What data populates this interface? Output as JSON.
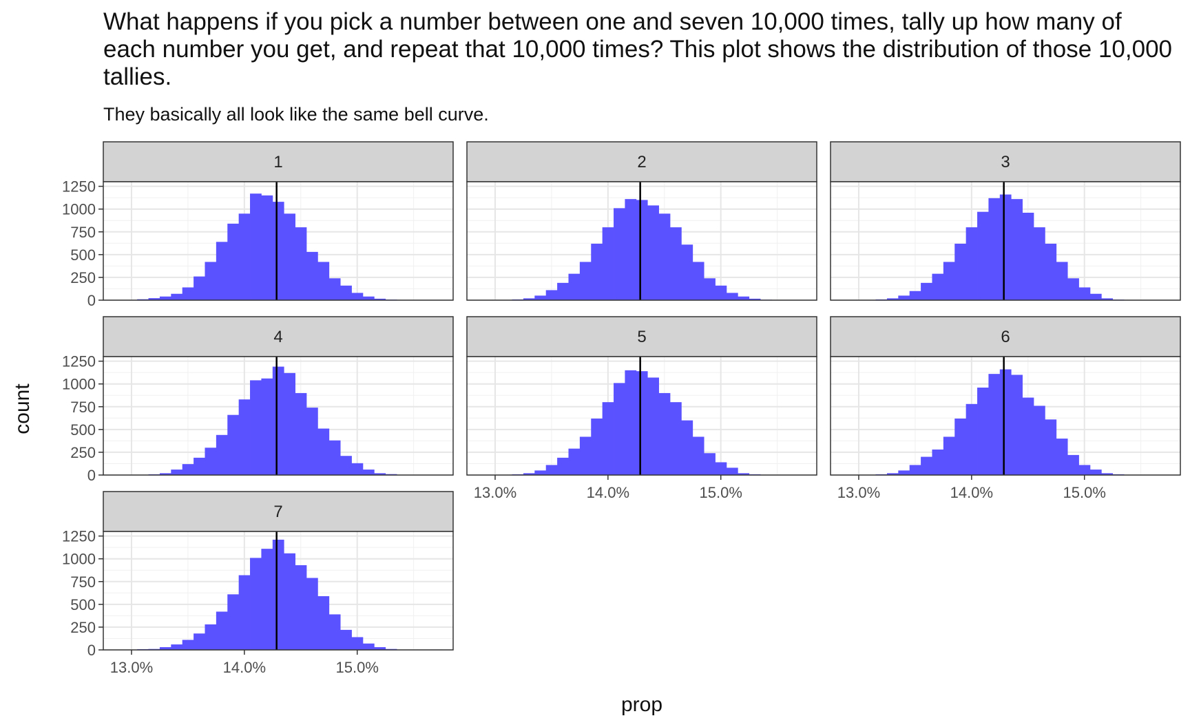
{
  "chart_data": {
    "type": "bar",
    "subtype": "faceted-histogram",
    "title": "What happens if you pick a number between one and seven 10,000 times, tally up how many of each number you get, and repeat that 10,000 times? This plot shows the distribution of those 10,000 tallies.",
    "subtitle": "They basically all look like the same bell curve.",
    "xlabel": "prop",
    "ylabel": "count",
    "xlim": [
      0.1275,
      0.1585
    ],
    "ylim": [
      0,
      1300
    ],
    "x_ticks": [
      0.13,
      0.14,
      0.15
    ],
    "x_tick_labels": [
      "13.0%",
      "14.0%",
      "15.0%"
    ],
    "y_ticks": [
      0,
      250,
      500,
      750,
      1000,
      1250
    ],
    "y_tick_labels": [
      "0",
      "250",
      "500",
      "750",
      "1000",
      "1250"
    ],
    "reference_line_x": 0.142857,
    "bar_color": "#5b52ff",
    "bin_width": 0.001,
    "bin_centers": [
      0.128,
      0.129,
      0.13,
      0.131,
      0.132,
      0.133,
      0.134,
      0.135,
      0.136,
      0.137,
      0.138,
      0.139,
      0.14,
      0.141,
      0.142,
      0.143,
      0.144,
      0.145,
      0.146,
      0.147,
      0.148,
      0.149,
      0.15,
      0.151,
      0.152,
      0.153,
      0.154,
      0.155,
      0.156,
      0.157
    ],
    "series": [
      {
        "name": "1",
        "values": [
          0,
          2,
          3,
          10,
          22,
          40,
          70,
          140,
          260,
          420,
          640,
          840,
          950,
          1170,
          1150,
          1080,
          950,
          800,
          530,
          420,
          240,
          160,
          80,
          40,
          16,
          6,
          3,
          1,
          0,
          0
        ]
      },
      {
        "name": "2",
        "values": [
          0,
          0,
          0,
          3,
          8,
          20,
          50,
          110,
          190,
          290,
          420,
          620,
          800,
          1010,
          1110,
          1100,
          1040,
          950,
          800,
          610,
          420,
          240,
          160,
          80,
          40,
          16,
          5,
          1,
          0,
          0
        ]
      },
      {
        "name": "3",
        "values": [
          0,
          0,
          0,
          3,
          8,
          20,
          50,
          100,
          190,
          290,
          420,
          620,
          800,
          970,
          1120,
          1160,
          1110,
          960,
          800,
          620,
          420,
          240,
          140,
          70,
          20,
          6,
          2,
          1,
          0,
          0
        ]
      },
      {
        "name": "4",
        "values": [
          0,
          0,
          1,
          3,
          8,
          20,
          60,
          120,
          190,
          300,
          440,
          660,
          830,
          1040,
          1060,
          1190,
          1120,
          900,
          740,
          510,
          380,
          210,
          130,
          60,
          20,
          10,
          2,
          0,
          0,
          0
        ]
      },
      {
        "name": "5",
        "values": [
          0,
          0,
          0,
          3,
          8,
          20,
          50,
          110,
          190,
          290,
          420,
          620,
          800,
          1010,
          1150,
          1140,
          1070,
          900,
          800,
          600,
          420,
          240,
          140,
          80,
          20,
          8,
          2,
          0,
          0,
          0
        ]
      },
      {
        "name": "6",
        "values": [
          0,
          0,
          0,
          3,
          8,
          20,
          50,
          110,
          200,
          280,
          420,
          620,
          780,
          960,
          1110,
          1160,
          1100,
          850,
          760,
          610,
          400,
          220,
          110,
          60,
          20,
          8,
          2,
          1,
          0,
          0
        ]
      },
      {
        "name": "7",
        "values": [
          2,
          3,
          3,
          8,
          10,
          30,
          60,
          110,
          180,
          280,
          420,
          610,
          820,
          1010,
          1110,
          1210,
          1060,
          930,
          790,
          590,
          390,
          220,
          140,
          70,
          30,
          10,
          3,
          1,
          0,
          4
        ]
      }
    ]
  }
}
